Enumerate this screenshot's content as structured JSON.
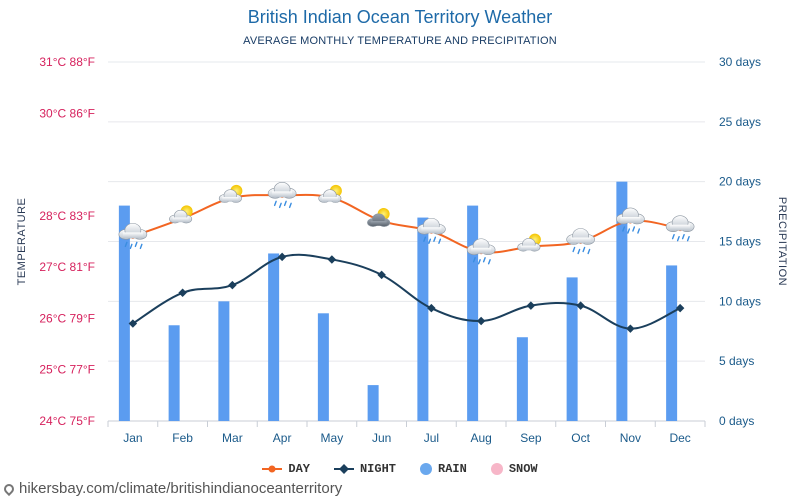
{
  "page": {
    "title": "British Indian Ocean Territory Weather",
    "subtitle": "AVERAGE MONTHLY TEMPERATURE AND PRECIPITATION",
    "footer": "hikersbay.com/climate/britishindianoceanterritory"
  },
  "legend": {
    "items": [
      {
        "name": "legend-day",
        "label": "DAY",
        "color": "#f26522",
        "kind": "line"
      },
      {
        "name": "legend-night",
        "label": "NIGHT",
        "color": "#1b3f5c",
        "kind": "line"
      },
      {
        "name": "legend-rain",
        "label": "RAIN",
        "color": "#6aa8ee",
        "kind": "dot"
      },
      {
        "name": "legend-snow",
        "label": "SNOW",
        "color": "#f7b6c8",
        "kind": "dot"
      }
    ]
  },
  "chart_data": {
    "type": "bar+line",
    "categories": [
      "Jan",
      "Feb",
      "Mar",
      "Apr",
      "May",
      "Jun",
      "Jul",
      "Aug",
      "Sep",
      "Oct",
      "Nov",
      "Dec"
    ],
    "series": [
      {
        "name": "DAY",
        "type": "line",
        "axis": "left",
        "color": "#f26522",
        "values": [
          27.6,
          27.95,
          28.35,
          28.4,
          28.35,
          27.9,
          27.7,
          27.3,
          27.4,
          27.5,
          27.9,
          27.75
        ]
      },
      {
        "name": "NIGHT",
        "type": "line",
        "axis": "left",
        "color": "#1b3f5c",
        "values": [
          25.9,
          26.5,
          26.65,
          27.2,
          27.15,
          26.85,
          26.2,
          25.95,
          26.25,
          26.25,
          25.8,
          26.2
        ]
      },
      {
        "name": "RAIN",
        "type": "bar",
        "axis": "right",
        "color": "#5b9cf0",
        "values": [
          18,
          8,
          10,
          14,
          9,
          3,
          17,
          18,
          7,
          12,
          20,
          13
        ]
      }
    ],
    "weather_icons": [
      "partly-cloudy-rain",
      "partly-sunny",
      "partly-sunny",
      "cloud-rain",
      "partly-sunny",
      "sun-dark-cloud",
      "cloud-rain",
      "cloud-rain",
      "partly-sunny",
      "cloud-rain",
      "cloud-rain",
      "cloud-rain"
    ],
    "left_axis": {
      "title": "TEMPERATURE",
      "ylim": [
        24,
        31
      ],
      "ticks": [
        {
          "value": 24,
          "label": "24°C 75°F"
        },
        {
          "value": 25,
          "label": "25°C 77°F"
        },
        {
          "value": 26,
          "label": "26°C 79°F"
        },
        {
          "value": 27,
          "label": "27°C 81°F"
        },
        {
          "value": 28,
          "label": "28°C 83°F"
        },
        {
          "value": 30,
          "label": "30°C 86°F"
        },
        {
          "value": 31,
          "label": "31°C 88°F"
        }
      ]
    },
    "right_axis": {
      "title": "PRECIPITATION",
      "ylim": [
        0,
        30
      ],
      "ticks": [
        {
          "value": 0,
          "label": "0 days"
        },
        {
          "value": 5,
          "label": "5 days"
        },
        {
          "value": 10,
          "label": "10 days"
        },
        {
          "value": 15,
          "label": "15 days"
        },
        {
          "value": 20,
          "label": "20 days"
        },
        {
          "value": 25,
          "label": "25 days"
        },
        {
          "value": 30,
          "label": "30 days"
        }
      ]
    },
    "grid": true,
    "legend_position": "bottom"
  }
}
